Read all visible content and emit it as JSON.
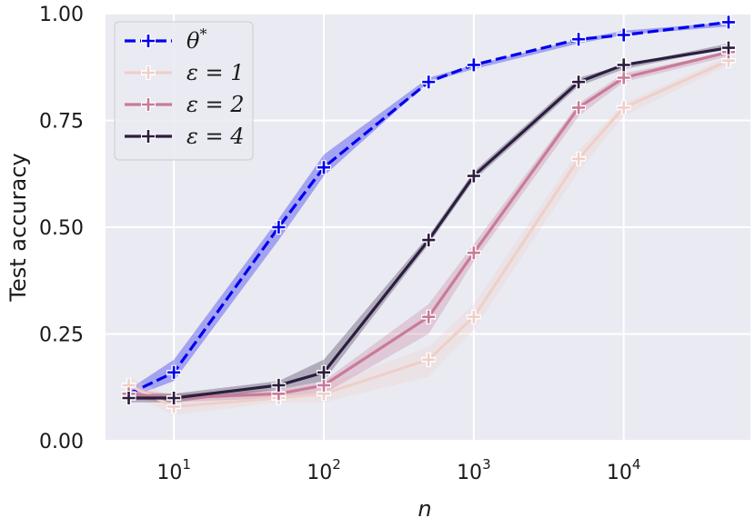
{
  "chart_data": {
    "type": "line",
    "xlabel": "n",
    "ylabel": "Test accuracy",
    "x_scale": "log",
    "xlim": [
      3.5,
      70000
    ],
    "ylim": [
      0.0,
      1.0
    ],
    "x_ticks": [
      10,
      100,
      1000,
      10000
    ],
    "x_tick_labels": [
      {
        "base": "10",
        "exp": "1"
      },
      {
        "base": "10",
        "exp": "2"
      },
      {
        "base": "10",
        "exp": "3"
      },
      {
        "base": "10",
        "exp": "4"
      }
    ],
    "y_ticks": [
      0.0,
      0.25,
      0.5,
      0.75,
      1.0
    ],
    "y_tick_labels": [
      "0.00",
      "0.25",
      "0.50",
      "0.75",
      "1.00"
    ],
    "grid": true,
    "background_color": "#eaeaf2",
    "legend_position": "top-left",
    "x": [
      5,
      10,
      50,
      100,
      500,
      1000,
      5000,
      10000,
      50000
    ],
    "series": [
      {
        "name": "θ*",
        "legend_base": "θ",
        "legend_sup": "*",
        "color": "#0000ee",
        "dashed": true,
        "values": [
          0.11,
          0.16,
          0.5,
          0.64,
          0.84,
          0.88,
          0.94,
          0.95,
          0.98
        ],
        "band_low": [
          0.1,
          0.14,
          0.47,
          0.62,
          0.84,
          0.87,
          0.93,
          0.95,
          0.97
        ],
        "band_high": [
          0.12,
          0.19,
          0.52,
          0.67,
          0.85,
          0.88,
          0.94,
          0.96,
          0.98
        ]
      },
      {
        "name": "ε = 1",
        "legend_base": "ε = 1",
        "color": "#f0cfc9",
        "dashed": false,
        "values": [
          0.13,
          0.08,
          0.1,
          0.11,
          0.19,
          0.29,
          0.66,
          0.78,
          0.89
        ],
        "band_low": [
          0.11,
          0.06,
          0.09,
          0.09,
          0.15,
          0.26,
          0.63,
          0.76,
          0.88
        ],
        "band_high": [
          0.15,
          0.1,
          0.12,
          0.13,
          0.22,
          0.32,
          0.68,
          0.79,
          0.9
        ]
      },
      {
        "name": "ε = 2",
        "legend_base": "ε = 2",
        "color": "#c87b98",
        "dashed": false,
        "values": [
          0.11,
          0.1,
          0.11,
          0.13,
          0.29,
          0.44,
          0.78,
          0.85,
          0.91
        ],
        "band_low": [
          0.1,
          0.09,
          0.1,
          0.11,
          0.25,
          0.42,
          0.76,
          0.84,
          0.9
        ],
        "band_high": [
          0.12,
          0.11,
          0.12,
          0.14,
          0.32,
          0.46,
          0.79,
          0.86,
          0.91
        ]
      },
      {
        "name": "ε = 4",
        "legend_base": "ε = 4",
        "color": "#2c1e3e",
        "dashed": false,
        "values": [
          0.1,
          0.1,
          0.13,
          0.16,
          0.47,
          0.62,
          0.84,
          0.88,
          0.92
        ],
        "band_low": [
          0.09,
          0.09,
          0.12,
          0.14,
          0.46,
          0.61,
          0.83,
          0.87,
          0.92
        ],
        "band_high": [
          0.11,
          0.11,
          0.14,
          0.19,
          0.48,
          0.63,
          0.85,
          0.88,
          0.93
        ]
      }
    ]
  }
}
